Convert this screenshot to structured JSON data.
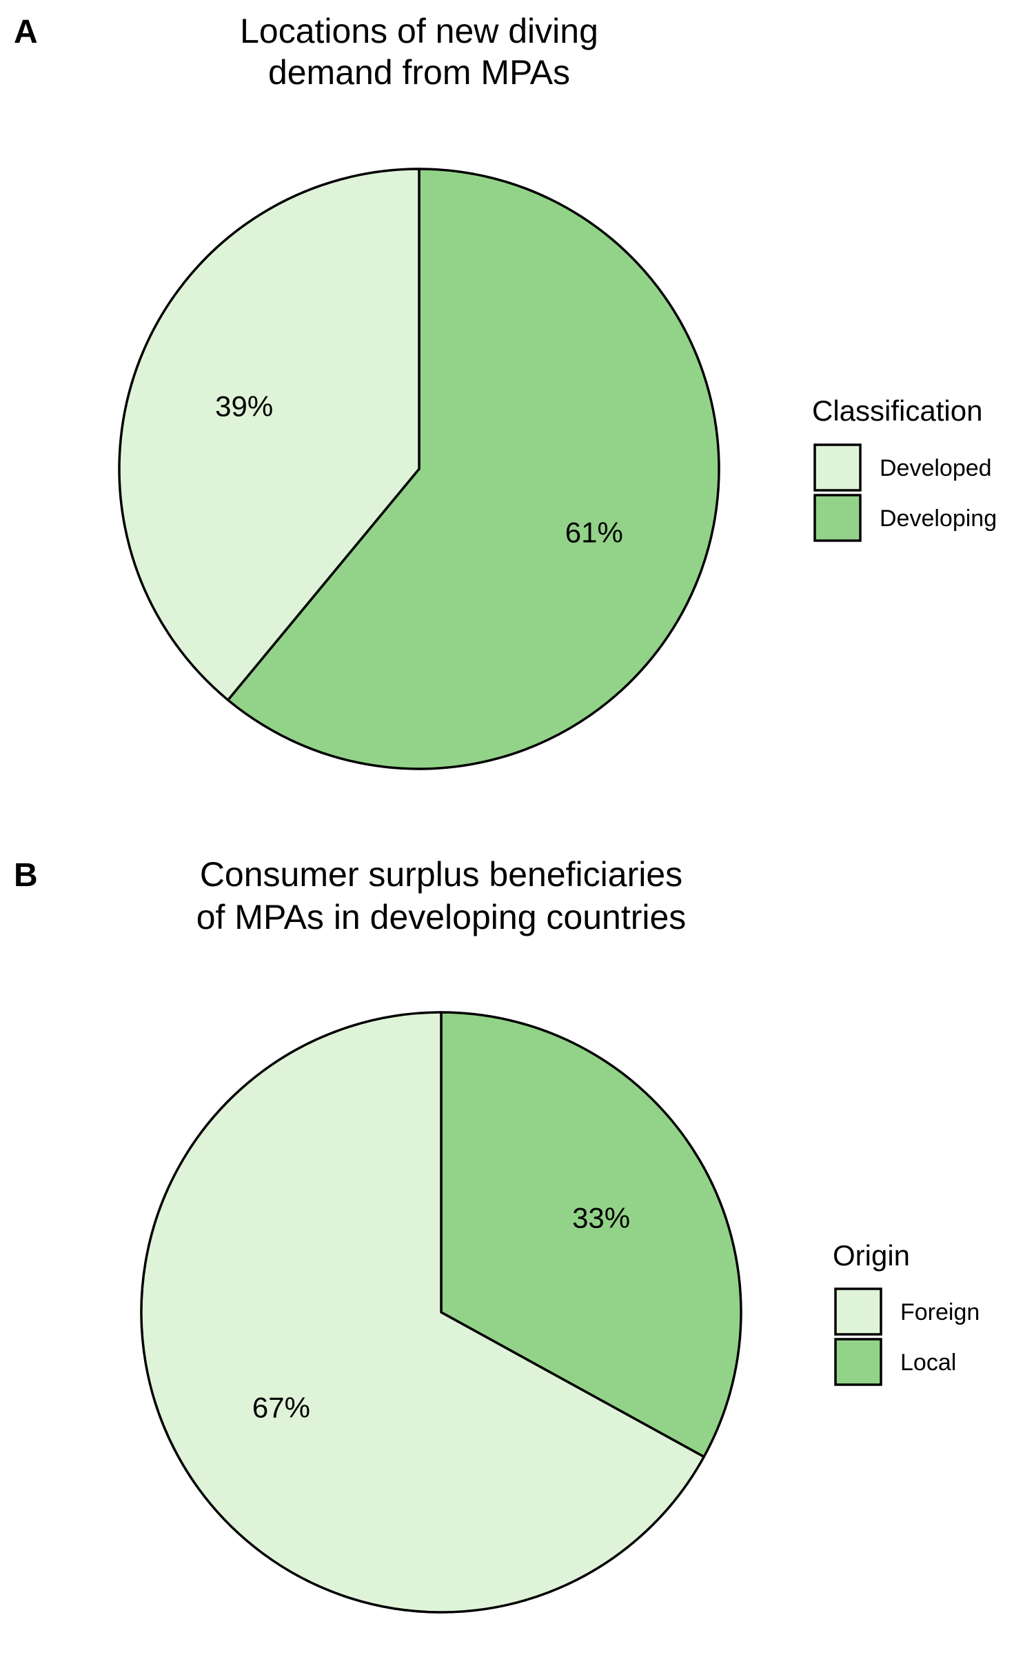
{
  "chart_data": [
    {
      "type": "pie",
      "panel_label": "A",
      "title_lines": [
        "Locations of new diving",
        "demand from MPAs"
      ],
      "legend_title": "Classification",
      "legend_position": "right",
      "categories": [
        "Developed",
        "Developing"
      ],
      "values": [
        39,
        61
      ],
      "labels": [
        "39%",
        "61%"
      ],
      "colors": [
        "#dff3d8",
        "#93d389"
      ]
    },
    {
      "type": "pie",
      "panel_label": "B",
      "title_lines": [
        "Consumer surplus beneficiaries",
        "of MPAs in developing countries"
      ],
      "legend_title": "Origin",
      "legend_position": "right",
      "categories": [
        "Foreign",
        "Local"
      ],
      "values": [
        67,
        33
      ],
      "labels": [
        "67%",
        "33%"
      ],
      "colors": [
        "#dff3d8",
        "#93d389"
      ]
    }
  ]
}
